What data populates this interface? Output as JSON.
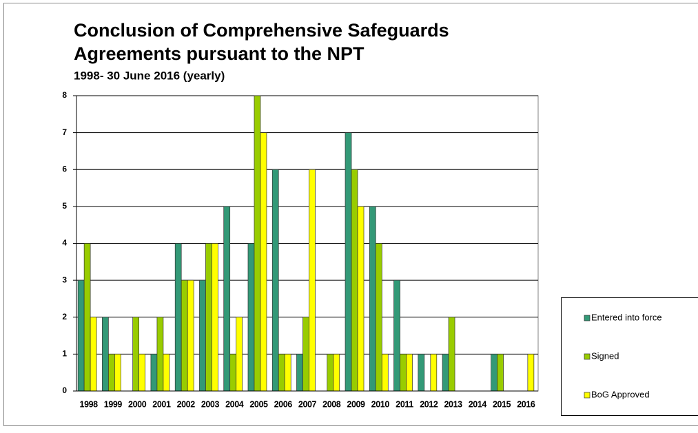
{
  "chart_data": {
    "type": "bar",
    "title": [
      "Conclusion of Comprehensive Safeguards",
      "Agreements pursuant to the NPT"
    ],
    "subtitle": "1998- 30 June 2016 (yearly)",
    "categories": [
      "1998",
      "1999",
      "2000",
      "2001",
      "2002",
      "2003",
      "2004",
      "2005",
      "2006",
      "2007",
      "2008",
      "2009",
      "2010",
      "2011",
      "2012",
      "2013",
      "2014",
      "2015",
      "2016"
    ],
    "series": [
      {
        "name": "Entered into force",
        "color": "#339977",
        "values": [
          3,
          2,
          0,
          1,
          4,
          3,
          5,
          4,
          6,
          1,
          0,
          7,
          5,
          3,
          1,
          1,
          0,
          1,
          0
        ]
      },
      {
        "name": "Signed",
        "color": "#99cc00",
        "values": [
          4,
          1,
          2,
          2,
          3,
          4,
          1,
          8,
          1,
          2,
          1,
          6,
          4,
          1,
          0,
          2,
          0,
          1,
          0
        ]
      },
      {
        "name": "BoG Approved",
        "color": "#ffff00",
        "values": [
          2,
          1,
          1,
          1,
          3,
          4,
          2,
          7,
          1,
          6,
          1,
          5,
          1,
          1,
          1,
          0,
          0,
          0,
          1
        ]
      }
    ],
    "ylim": [
      0,
      8
    ],
    "yticks": [
      0,
      1,
      2,
      3,
      4,
      5,
      6,
      7,
      8
    ],
    "grid": true,
    "legend": "right"
  }
}
